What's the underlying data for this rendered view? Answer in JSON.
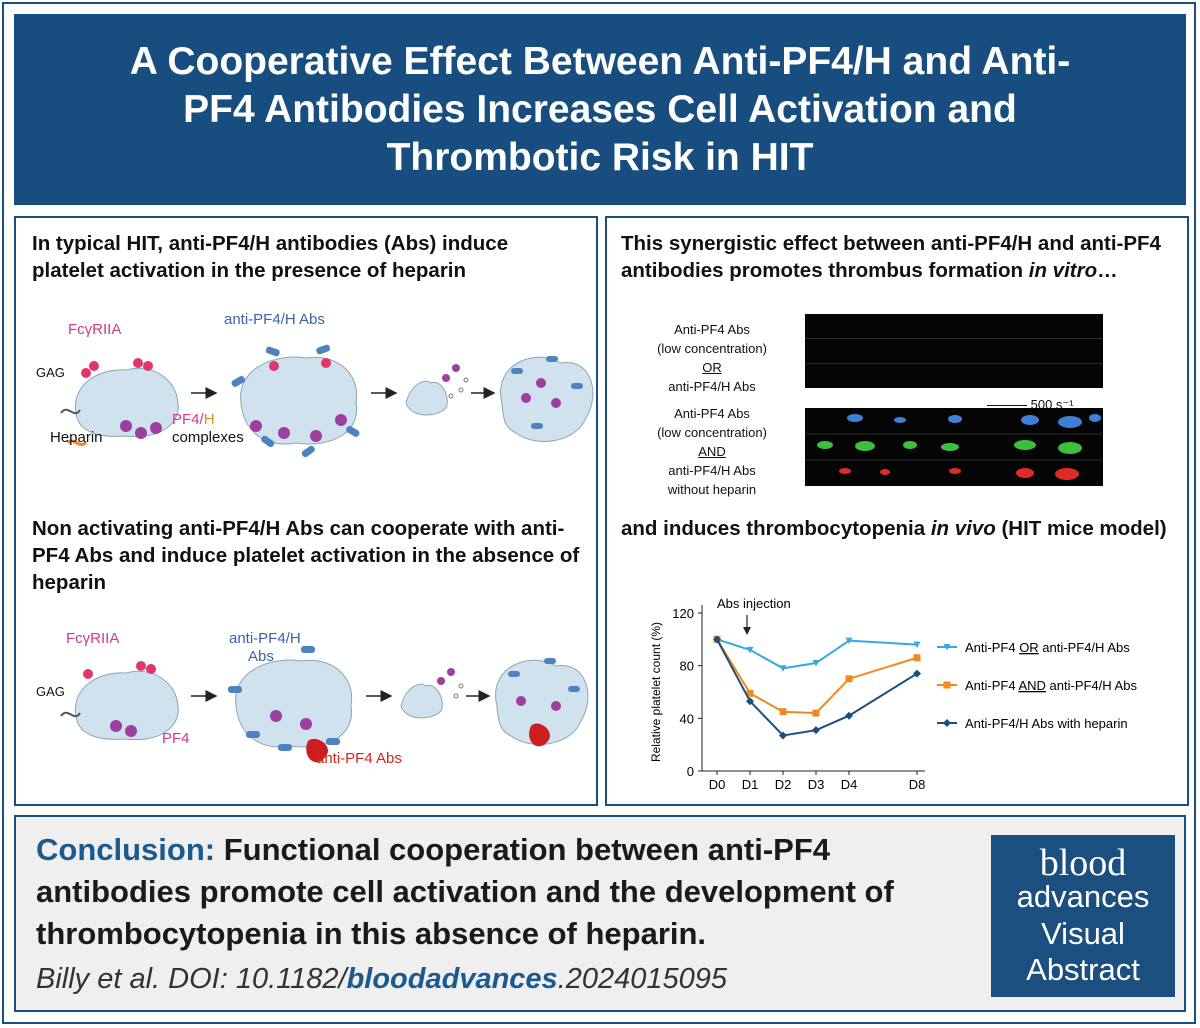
{
  "title": "A Cooperative Effect Between Anti-PF4/H and Anti-PF4 Antibodies Increases Cell Activation and Thrombotic Risk in HIT",
  "panel1": {
    "title": "In typical HIT, anti-PF4/H antibodies (Abs) induce platelet activation in the presence of heparin",
    "fcgr": "FcγRIIA",
    "abs": "anti-PF4/H Abs",
    "gag": "GAG",
    "pf4": "PF4/",
    "h": "H",
    "complexes": "complexes",
    "heparin": "Heparin"
  },
  "panel2": {
    "title_a": "This synergistic effect between anti-PF4/H and anti-PF4 antibodies promotes thrombus formation ",
    "title_em": "in vitro",
    "title_b": "…",
    "cond1": [
      "Anti-PF4 Abs",
      "(low concentration)",
      "OR",
      "anti-PF4/H Abs"
    ],
    "cond2": [
      "Anti-PF4 Abs",
      "(low concentration)",
      "AND",
      "anti-PF4/H Abs",
      "without heparin"
    ],
    "shear": "500 s⁻¹"
  },
  "panel3": {
    "title": "Non activating anti-PF4/H Abs can cooperate with anti-PF4 Abs and induce platelet activation in the absence of heparin",
    "fcgr": "FcγRIIA",
    "abs_line1": "anti-PF4/H",
    "abs_line2": "Abs",
    "gag": "GAG",
    "pf4": "PF4",
    "antipf4": "anti-PF4 Abs"
  },
  "panel4": {
    "title_a": "and induces thrombocytopenia ",
    "title_em": "in vivo",
    "title_b": " (HIT mice model)"
  },
  "chart_data": {
    "type": "line",
    "ylabel": "Relative platelet count (%)",
    "xlabel": "",
    "annotation": "Abs injection",
    "x_labels": [
      "D0",
      "D1",
      "D2",
      "D3",
      "D4",
      "D8"
    ],
    "x": [
      0,
      1,
      2,
      3,
      4,
      8
    ],
    "ylim": [
      0,
      120
    ],
    "yticks": [
      "0",
      "40",
      "80",
      "120"
    ],
    "legend_placement": "right",
    "series": [
      {
        "name": "Anti-PF4 OR anti-PF4/H Abs",
        "color": "#35a9e0",
        "values": [
          100,
          92,
          78,
          82,
          99,
          96
        ]
      },
      {
        "name": "Anti-PF4 AND anti-PF4/H Abs",
        "color": "#f08a1c",
        "values": [
          100,
          59,
          45,
          44,
          70,
          86
        ]
      },
      {
        "name": "Anti-PF4/H Abs with heparin",
        "color": "#1c4e7e",
        "values": [
          100,
          53,
          27,
          31,
          42,
          74
        ]
      }
    ]
  },
  "legend": {
    "s1_a": "Anti-PF4 ",
    "s1_u": "OR",
    "s1_b": " anti-PF4/H Abs",
    "s2_a": "Anti-PF4 ",
    "s2_u": "AND",
    "s2_b": " anti-PF4/H Abs",
    "s3": "Anti-PF4/H Abs with heparin"
  },
  "conclusion": {
    "head": "Conclusion:",
    "text": " Functional cooperation between anti-PF4 antibodies promote cell activation and the development of thrombocytopenia in this absence of heparin.",
    "cite_a": "Billy et al. DOI: 10.1182/",
    "cite_b": "bloodadvances",
    "cite_c": ".2024015095"
  },
  "logo": {
    "l1": "blood",
    "l2": "advances",
    "l3": "Visual",
    "l4": "Abstract"
  },
  "colors": {
    "brand": "#174e7f",
    "pink": "#d23a84",
    "red": "#d1261f"
  }
}
